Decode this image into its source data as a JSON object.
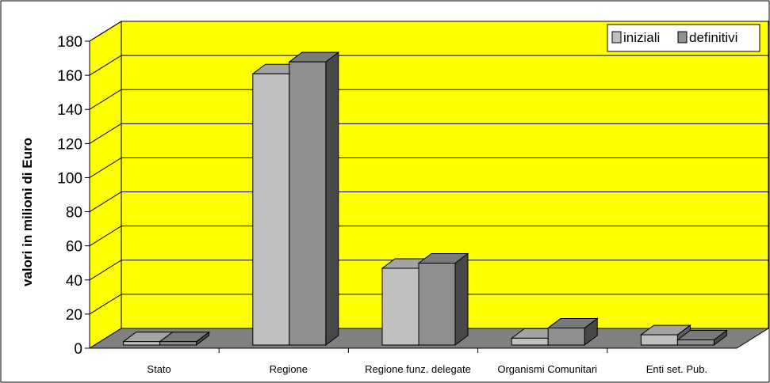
{
  "chart_data": {
    "type": "bar",
    "three_d": true,
    "categories": [
      "Stato",
      "Regione",
      "Regione funz. delegate",
      "Organismi Comunitari",
      "Enti set. Pub."
    ],
    "series": [
      {
        "name": "iniziali",
        "values": [
          2,
          159,
          45,
          4,
          6
        ],
        "color": "#c0c0c0"
      },
      {
        "name": "definitivi",
        "values": [
          2,
          166,
          48,
          10,
          3
        ],
        "color": "#8f8f8f"
      }
    ],
    "ylabel": "valori in milioni di Euro",
    "xlabel": "",
    "title": "",
    "ylim": [
      0,
      180
    ],
    "yticks": [
      0,
      20,
      40,
      60,
      80,
      100,
      120,
      140,
      160,
      180
    ],
    "grid": true,
    "legend_position": "top-right",
    "colors": {
      "wall": "#ffff00",
      "floor": "#808080",
      "gridline": "#000000",
      "frame": "#000000"
    }
  }
}
